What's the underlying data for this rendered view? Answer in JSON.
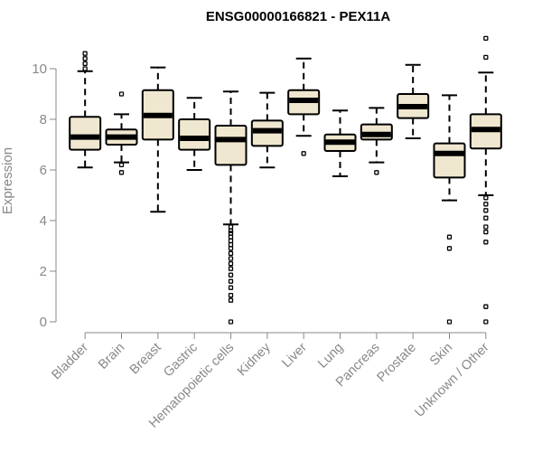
{
  "chart_data": {
    "type": "boxplot",
    "title": "ENSG00000166821 - PEX11A",
    "xlabel": "",
    "ylabel": "Expression",
    "ylim": [
      0,
      11.25
    ],
    "yticks": [
      0,
      2,
      4,
      6,
      8,
      10
    ],
    "colors": {
      "box_fill": "#efe7cf",
      "stroke": "#000000",
      "axis": "#888888"
    },
    "categories": [
      "Bladder",
      "Brain",
      "Breast",
      "Gastric",
      "Hematopoietic cells",
      "Kidney",
      "Liver",
      "Lung",
      "Pancreas",
      "Prostate",
      "Skin",
      "Unknown / Other"
    ],
    "boxes": [
      {
        "name": "Bladder",
        "whisker_low": 6.1,
        "q1": 6.8,
        "median": 7.3,
        "q3": 8.1,
        "whisker_high": 9.9,
        "outliers": [
          10.0,
          10.2,
          10.4,
          10.6
        ]
      },
      {
        "name": "Brain",
        "whisker_low": 6.3,
        "q1": 7.0,
        "median": 7.3,
        "q3": 7.6,
        "whisker_high": 8.2,
        "outliers": [
          5.9,
          6.2,
          9.0
        ]
      },
      {
        "name": "Breast",
        "whisker_low": 4.35,
        "q1": 7.2,
        "median": 8.15,
        "q3": 9.15,
        "whisker_high": 10.05,
        "outliers": []
      },
      {
        "name": "Gastric",
        "whisker_low": 6.0,
        "q1": 6.8,
        "median": 7.25,
        "q3": 8.0,
        "whisker_high": 8.85,
        "outliers": []
      },
      {
        "name": "Hematopoietic cells",
        "whisker_low": 3.85,
        "q1": 6.2,
        "median": 7.2,
        "q3": 7.75,
        "whisker_high": 9.1,
        "outliers": [
          3.75,
          3.6,
          3.5,
          3.35,
          3.2,
          3.05,
          2.9,
          2.7,
          2.5,
          2.3,
          2.1,
          1.85,
          1.6,
          1.35,
          1.05,
          0.85,
          0.0
        ]
      },
      {
        "name": "Kidney",
        "whisker_low": 6.1,
        "q1": 6.95,
        "median": 7.55,
        "q3": 7.95,
        "whisker_high": 9.05,
        "outliers": []
      },
      {
        "name": "Liver",
        "whisker_low": 7.35,
        "q1": 8.2,
        "median": 8.75,
        "q3": 9.15,
        "whisker_high": 10.4,
        "outliers": [
          6.65
        ]
      },
      {
        "name": "Lung",
        "whisker_low": 5.75,
        "q1": 6.75,
        "median": 7.1,
        "q3": 7.4,
        "whisker_high": 8.35,
        "outliers": []
      },
      {
        "name": "Pancreas",
        "whisker_low": 6.3,
        "q1": 7.2,
        "median": 7.4,
        "q3": 7.8,
        "whisker_high": 8.45,
        "outliers": [
          5.9
        ]
      },
      {
        "name": "Prostate",
        "whisker_low": 7.25,
        "q1": 8.05,
        "median": 8.5,
        "q3": 9.0,
        "whisker_high": 10.15,
        "outliers": []
      },
      {
        "name": "Skin",
        "whisker_low": 4.8,
        "q1": 5.7,
        "median": 6.65,
        "q3": 7.05,
        "whisker_high": 8.95,
        "outliers": [
          3.35,
          2.9,
          0.0
        ]
      },
      {
        "name": "Unknown / Other",
        "whisker_low": 5.0,
        "q1": 6.85,
        "median": 7.6,
        "q3": 8.2,
        "whisker_high": 9.85,
        "outliers": [
          11.2,
          10.45,
          4.9,
          4.65,
          4.4,
          4.1,
          3.75,
          3.55,
          3.15,
          0.6,
          0.0
        ]
      }
    ]
  }
}
